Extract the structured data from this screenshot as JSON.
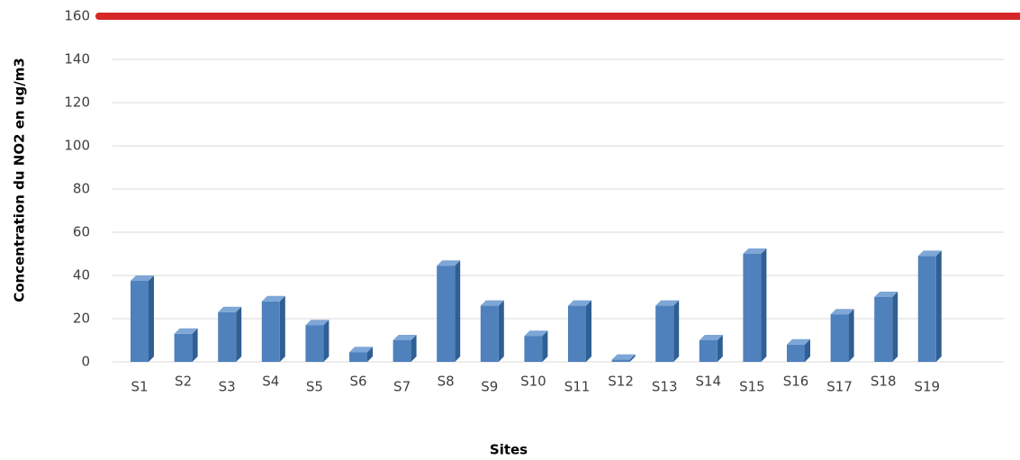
{
  "chart_data": {
    "type": "bar",
    "x_label": "Sites",
    "y_label": "Concentration du NO2 en ug/m3",
    "categories": [
      "S1",
      "S2",
      "S3",
      "S4",
      "S5",
      "S6",
      "S7",
      "S8",
      "S9",
      "S10",
      "S11",
      "S12",
      "S13",
      "S14",
      "S15",
      "S16",
      "S17",
      "S18",
      "S19"
    ],
    "values": [
      37.5,
      13,
      23,
      28,
      17,
      4.5,
      10,
      44.5,
      26,
      12,
      26,
      1,
      26,
      10,
      50,
      8,
      22,
      30,
      49
    ],
    "color": "#4f81bd",
    "reference_line": 160,
    "reference_color": "#d62728",
    "ylim": [
      0,
      160
    ],
    "yticks": [
      0,
      20,
      40,
      60,
      80,
      100,
      120,
      140,
      160
    ],
    "grid": true
  }
}
